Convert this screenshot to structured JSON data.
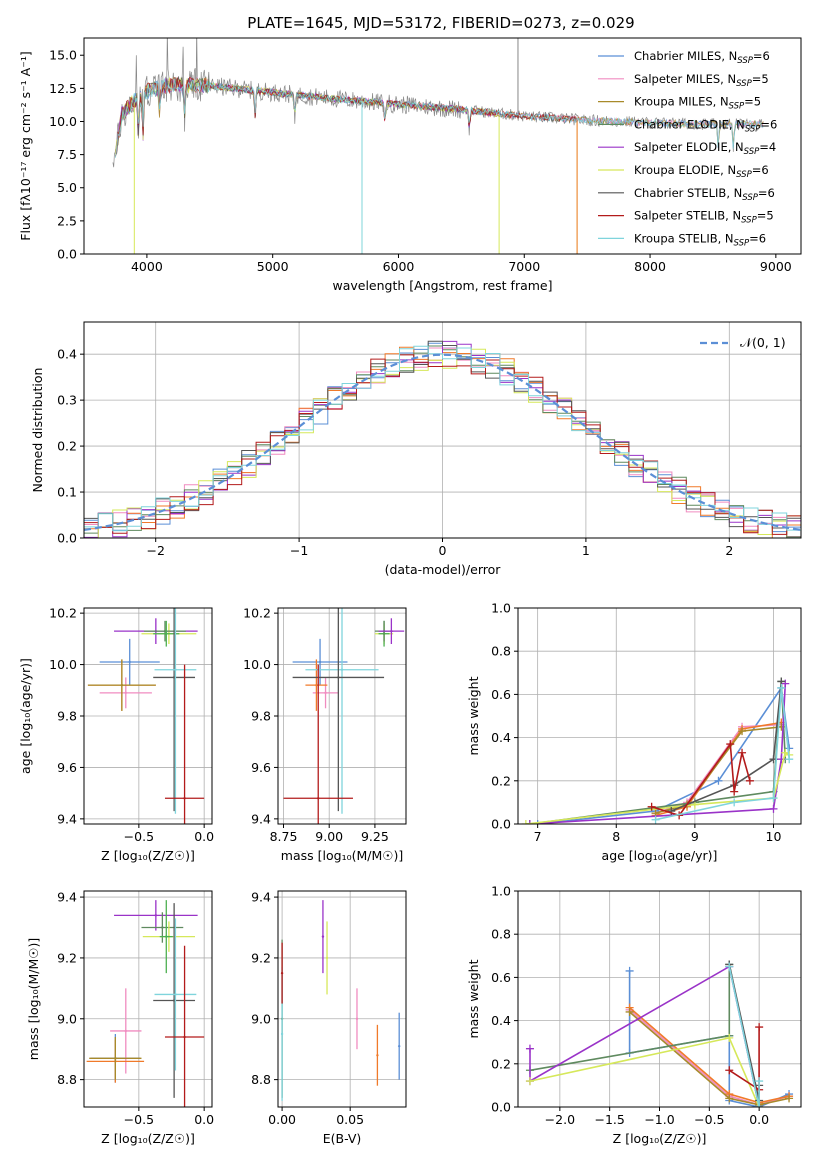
{
  "figure_title": "PLATE=1645, MJD=53172, FIBERID=0273, z=0.029",
  "colors": {
    "Chabrier MILES": "#5b8fd6",
    "Salpeter MILES": "#f08cc0",
    "Kroupa MILES": "#a88a2a",
    "Chabrier ELODIE": "#5f8a5f",
    "Salpeter ELODIE": "#9a33c8",
    "Kroupa ELODIE": "#d6e85a",
    "Chabrier STELIB": "#555555",
    "Salpeter STELIB": "#b31b1b",
    "Kroupa STELIB": "#7fd4dc",
    "orange": "#f07a2a",
    "green": "#4caf50",
    "grey": "#888888"
  },
  "chart_data": [
    {
      "id": "spectrum",
      "type": "line",
      "title": "",
      "xlabel": "wavelength [Angstrom, rest frame]",
      "ylabel": "Flux [fλ10⁻¹⁷ erg cm⁻² s⁻¹ A⁻¹]",
      "xlim": [
        3500,
        9200
      ],
      "ylim": [
        0,
        16.3
      ],
      "xticks": [
        4000,
        5000,
        6000,
        7000,
        8000,
        9000
      ],
      "yticks": [
        0.0,
        2.5,
        5.0,
        7.5,
        10.0,
        12.5,
        15.0
      ],
      "ytick_labels": [
        "0.0",
        "2.5",
        "5.0",
        "7.5",
        "10.0",
        "12.5",
        "15.0"
      ],
      "legend_position": "top-right",
      "legend": [
        {
          "label": "Chabrier MILES, N",
          "sub": "SSP",
          "tail": "=6",
          "color_key": "Chabrier MILES"
        },
        {
          "label": "Salpeter MILES, N",
          "sub": "SSP",
          "tail": "=5",
          "color_key": "Salpeter MILES"
        },
        {
          "label": "Kroupa MILES, N",
          "sub": "SSP",
          "tail": "=5",
          "color_key": "Kroupa MILES"
        },
        {
          "label": "Chabrier ELODIE, N",
          "sub": "SSP",
          "tail": "=6",
          "color_key": "Chabrier ELODIE"
        },
        {
          "label": "Salpeter ELODIE, N",
          "sub": "SSP",
          "tail": "=4",
          "color_key": "Salpeter ELODIE"
        },
        {
          "label": "Kroupa ELODIE, N",
          "sub": "SSP",
          "tail": "=6",
          "color_key": "Kroupa ELODIE"
        },
        {
          "label": "Chabrier STELIB, N",
          "sub": "SSP",
          "tail": "=6",
          "color_key": "Chabrier STELIB"
        },
        {
          "label": "Salpeter STELIB, N",
          "sub": "SSP",
          "tail": "=5",
          "color_key": "Salpeter STELIB"
        },
        {
          "label": "Kroupa STELIB, N",
          "sub": "SSP",
          "tail": "=6",
          "color_key": "Kroupa STELIB"
        }
      ],
      "continuum": [
        [
          3750,
          7.5
        ],
        [
          3800,
          10.5
        ],
        [
          3900,
          11.6
        ],
        [
          4000,
          12.3
        ],
        [
          4200,
          12.8
        ],
        [
          4500,
          12.7
        ],
        [
          5000,
          12.2
        ],
        [
          5500,
          11.7
        ],
        [
          6000,
          11.3
        ],
        [
          6500,
          10.9
        ],
        [
          7000,
          10.4
        ],
        [
          7500,
          10.1
        ],
        [
          8000,
          9.9
        ],
        [
          8500,
          9.8
        ],
        [
          8900,
          9.8
        ]
      ],
      "absorption_lines": [
        [
          3933,
          3.0
        ],
        [
          3968,
          3.5
        ],
        [
          4102,
          2.0
        ],
        [
          4300,
          2.5
        ],
        [
          4861,
          2.2
        ],
        [
          5175,
          1.8
        ],
        [
          5893,
          1.5
        ],
        [
          6563,
          1.5
        ],
        [
          8542,
          2.0
        ],
        [
          8662,
          2.0
        ]
      ],
      "spikes": [
        [
          3900,
          0.0
        ],
        [
          5710,
          0.0
        ],
        [
          6800,
          0.0
        ],
        [
          7420,
          0.0
        ],
        [
          6950,
          16.3
        ]
      ]
    },
    {
      "id": "residuals",
      "type": "histogram",
      "title": "",
      "xlabel": "(data-model)/error",
      "ylabel": "Normed distribution",
      "xlim": [
        -2.5,
        2.5
      ],
      "ylim": [
        0,
        0.47
      ],
      "xticks": [
        -2,
        -1,
        0,
        1,
        2
      ],
      "xtick_labels": [
        "−2",
        "−1",
        "0",
        "1",
        "2"
      ],
      "yticks": [
        0.0,
        0.1,
        0.2,
        0.3,
        0.4
      ],
      "ytick_labels": [
        "0.0",
        "0.1",
        "0.2",
        "0.3",
        "0.4"
      ],
      "grid": true,
      "bin_width": 0.1,
      "reference_curve": {
        "label": "𝒩(0, 1)",
        "mean": 0,
        "sigma": 1,
        "color_key": "Chabrier MILES"
      },
      "legend_position": "top-right"
    },
    {
      "id": "age_vs_Z",
      "type": "errorbar",
      "xlabel": "Z [log₁₀(Z/Z☉)]",
      "ylabel": "age  [log₁₀(age/yr)]",
      "xlim": [
        -0.92,
        0.06
      ],
      "ylim": [
        9.38,
        10.22
      ],
      "xticks": [
        -0.5,
        0.0
      ],
      "xtick_labels": [
        "−0.5",
        "0.0"
      ],
      "yticks": [
        9.4,
        9.6,
        9.8,
        10.0,
        10.2
      ],
      "ytick_labels": [
        "9.4",
        "9.6",
        "9.8",
        "10.0",
        "10.2"
      ],
      "grid": true,
      "points": [
        {
          "color_key": "Chabrier MILES",
          "x": -0.57,
          "y": 10.01,
          "xerr": 0.23,
          "yerr": 0.09
        },
        {
          "color_key": "Salpeter MILES",
          "x": -0.6,
          "y": 9.89,
          "xerr": 0.2,
          "yerr": 0.06
        },
        {
          "color_key": "orange",
          "x": -0.63,
          "y": 9.92,
          "xerr": 0.26,
          "yerr": 0.1
        },
        {
          "color_key": "Kroupa MILES",
          "x": -0.63,
          "y": 9.92,
          "xerr": 0.26,
          "yerr": 0.1
        },
        {
          "color_key": "Salpeter ELODIE",
          "x": -0.37,
          "y": 10.13,
          "xerr": 0.32,
          "yerr": 0.05
        },
        {
          "color_key": "Kroupa ELODIE",
          "x": -0.27,
          "y": 10.12,
          "xerr": 0.21,
          "yerr": 0.04
        },
        {
          "color_key": "Chabrier ELODIE",
          "x": -0.3,
          "y": 10.13,
          "xerr": 0.16,
          "yerr": 0.04
        },
        {
          "color_key": "green",
          "x": -0.29,
          "y": 10.12,
          "xerr": 0.1,
          "yerr": 0.05
        },
        {
          "color_key": "Chabrier STELIB",
          "x": -0.23,
          "y": 9.95,
          "xerr": 0.16,
          "yerr": 0.52
        },
        {
          "color_key": "Kroupa STELIB",
          "x": -0.22,
          "y": 9.98,
          "xerr": 0.16,
          "yerr": 0.56
        },
        {
          "color_key": "Salpeter STELIB",
          "x": -0.15,
          "y": 9.48,
          "xerr": 0.15,
          "yerr": 0.52
        }
      ]
    },
    {
      "id": "age_vs_mass",
      "type": "errorbar",
      "xlabel": "mass [log₁₀(M/M☉)]",
      "ylabel": "",
      "xlim": [
        8.72,
        9.42
      ],
      "ylim": [
        9.38,
        10.22
      ],
      "xticks": [
        8.75,
        9.0,
        9.25
      ],
      "xtick_labels": [
        "8.75",
        "9.00",
        "9.25"
      ],
      "yticks": [
        9.4,
        9.6,
        9.8,
        10.0,
        10.2
      ],
      "ytick_labels": [
        "9.4",
        "9.6",
        "9.8",
        "10.0",
        "10.2"
      ],
      "grid": true,
      "points": [
        {
          "color_key": "Chabrier MILES",
          "x": 8.95,
          "y": 10.01,
          "xerr": 0.15,
          "yerr": 0.09
        },
        {
          "color_key": "Salpeter MILES",
          "x": 8.98,
          "y": 9.89,
          "xerr": 0.07,
          "yerr": 0.06
        },
        {
          "color_key": "orange",
          "x": 8.93,
          "y": 9.92,
          "xerr": 0.06,
          "yerr": 0.1
        },
        {
          "color_key": "Kroupa STELIB",
          "x": 9.07,
          "y": 9.98,
          "xerr": 0.2,
          "yerr": 0.56
        },
        {
          "color_key": "Chabrier STELIB",
          "x": 9.05,
          "y": 9.95,
          "xerr": 0.25,
          "yerr": 0.52
        },
        {
          "color_key": "Salpeter STELIB",
          "x": 8.94,
          "y": 9.48,
          "xerr": 0.19,
          "yerr": 0.52
        },
        {
          "color_key": "Kroupa ELODIE",
          "x": 9.3,
          "y": 10.12,
          "xerr": 0.05,
          "yerr": 0.04
        },
        {
          "color_key": "green",
          "x": 9.3,
          "y": 10.12,
          "xerr": 0.03,
          "yerr": 0.05
        },
        {
          "color_key": "Chabrier ELODIE",
          "x": 9.3,
          "y": 10.13,
          "xerr": 0.05,
          "yerr": 0.04
        },
        {
          "color_key": "Salpeter ELODIE",
          "x": 9.34,
          "y": 10.13,
          "xerr": 0.07,
          "yerr": 0.05
        }
      ]
    },
    {
      "id": "weight_vs_age",
      "type": "line",
      "xlabel": "age  [log₁₀(age/yr)]",
      "ylabel": "mass weight",
      "xlim": [
        6.75,
        10.35
      ],
      "ylim": [
        0,
        1.0
      ],
      "xticks": [
        7,
        8,
        9,
        10
      ],
      "yticks": [
        0.0,
        0.2,
        0.4,
        0.6,
        0.8,
        1.0
      ],
      "ytick_labels": [
        "0.0",
        "0.2",
        "0.4",
        "0.6",
        "0.8",
        "1.0"
      ],
      "grid": true,
      "series": [
        {
          "color_key": "Chabrier MILES",
          "x": [
            7.0,
            8.5,
            9.3,
            10.1,
            10.2
          ],
          "y": [
            0.0,
            0.06,
            0.2,
            0.63,
            0.35
          ]
        },
        {
          "color_key": "Salpeter MILES",
          "x": [
            8.5,
            8.9,
            9.6,
            10.1
          ],
          "y": [
            0.05,
            0.1,
            0.45,
            0.46
          ]
        },
        {
          "color_key": "orange",
          "x": [
            8.5,
            8.9,
            9.6,
            10.1
          ],
          "y": [
            0.04,
            0.08,
            0.44,
            0.47
          ]
        },
        {
          "color_key": "Kroupa MILES",
          "x": [
            8.5,
            8.9,
            9.6,
            10.1
          ],
          "y": [
            0.05,
            0.09,
            0.43,
            0.45
          ]
        },
        {
          "color_key": "Chabrier ELODIE",
          "x": [
            6.9,
            9.0,
            10.0,
            10.1,
            10.15
          ],
          "y": [
            0.0,
            0.1,
            0.15,
            0.66,
            0.3
          ]
        },
        {
          "color_key": "Salpeter ELODIE",
          "x": [
            6.9,
            10.0,
            10.1,
            10.15
          ],
          "y": [
            0.0,
            0.07,
            0.3,
            0.65
          ]
        },
        {
          "color_key": "Kroupa ELODIE",
          "x": [
            6.85,
            9.0,
            10.0,
            10.15,
            10.2
          ],
          "y": [
            0.0,
            0.09,
            0.12,
            0.33,
            0.32
          ]
        },
        {
          "color_key": "Chabrier STELIB",
          "x": [
            8.7,
            9.5,
            10.0,
            10.1
          ],
          "y": [
            0.06,
            0.18,
            0.3,
            0.66
          ]
        },
        {
          "color_key": "Salpeter STELIB",
          "x": [
            8.45,
            8.8,
            9.45,
            9.5,
            9.6,
            9.7
          ],
          "y": [
            0.08,
            0.04,
            0.37,
            0.15,
            0.33,
            0.2
          ]
        },
        {
          "color_key": "Kroupa STELIB",
          "x": [
            8.5,
            9.5,
            10.0,
            10.1,
            10.2
          ],
          "y": [
            0.02,
            0.1,
            0.12,
            0.63,
            0.3
          ]
        }
      ]
    },
    {
      "id": "mass_vs_Z",
      "type": "errorbar",
      "xlabel": "Z [log₁₀(Z/Z☉)]",
      "ylabel": "mass [log₁₀(M/M☉)]",
      "xlim": [
        -0.92,
        0.06
      ],
      "ylim": [
        8.71,
        9.42
      ],
      "xticks": [
        -0.5,
        0.0
      ],
      "xtick_labels": [
        "−0.5",
        "0.0"
      ],
      "yticks": [
        8.8,
        9.0,
        9.2,
        9.4
      ],
      "ytick_labels": [
        "8.8",
        "9.0",
        "9.2",
        "9.4"
      ],
      "grid": true,
      "points": [
        {
          "color_key": "Chabrier MILES",
          "x": -0.68,
          "y": 8.87,
          "xerr": 0.19,
          "yerr": 0.08
        },
        {
          "color_key": "Salpeter MILES",
          "x": -0.6,
          "y": 8.96,
          "xerr": 0.12,
          "yerr": 0.14
        },
        {
          "color_key": "orange",
          "x": -0.68,
          "y": 8.86,
          "xerr": 0.22,
          "yerr": 0.07
        },
        {
          "color_key": "Kroupa MILES",
          "x": -0.68,
          "y": 8.87,
          "xerr": 0.2,
          "yerr": 0.07
        },
        {
          "color_key": "Salpeter ELODIE",
          "x": -0.37,
          "y": 9.34,
          "xerr": 0.32,
          "yerr": 0.05
        },
        {
          "color_key": "Chabrier ELODIE",
          "x": -0.32,
          "y": 9.3,
          "xerr": 0.16,
          "yerr": 0.05
        },
        {
          "color_key": "Kroupa ELODIE",
          "x": -0.27,
          "y": 9.27,
          "xerr": 0.2,
          "yerr": 0.05
        },
        {
          "color_key": "green",
          "x": -0.29,
          "y": 9.27,
          "xerr": 0.05,
          "yerr": 0.12
        },
        {
          "color_key": "Chabrier STELIB",
          "x": -0.23,
          "y": 9.06,
          "xerr": 0.16,
          "yerr": 0.32
        },
        {
          "color_key": "Kroupa STELIB",
          "x": -0.22,
          "y": 9.08,
          "xerr": 0.16,
          "yerr": 0.25
        },
        {
          "color_key": "Salpeter STELIB",
          "x": -0.15,
          "y": 8.94,
          "xerr": 0.15,
          "yerr": 0.3
        }
      ]
    },
    {
      "id": "mass_vs_ebv",
      "type": "errorbar",
      "xlabel": "E(B-V)",
      "ylabel": "",
      "xlim": [
        -0.003,
        0.091
      ],
      "ylim": [
        8.71,
        9.42
      ],
      "xticks": [
        0.0,
        0.05
      ],
      "xtick_labels": [
        "0.00",
        "0.05"
      ],
      "yticks": [
        8.8,
        9.0,
        9.2,
        9.4
      ],
      "ytick_labels": [
        "8.8",
        "9.0",
        "9.2",
        "9.4"
      ],
      "grid": true,
      "points": [
        {
          "color_key": "Chabrier ELODIE",
          "x": 0.0,
          "y": 9.0,
          "xerr": 0,
          "yerr": 0.26
        },
        {
          "color_key": "Kroupa STELIB",
          "x": 0.0,
          "y": 8.95,
          "xerr": 0,
          "yerr": 0.22
        },
        {
          "color_key": "Salpeter STELIB",
          "x": 0.0,
          "y": 9.15,
          "xerr": 0,
          "yerr": 0.1
        },
        {
          "color_key": "Salpeter ELODIE",
          "x": 0.03,
          "y": 9.27,
          "xerr": 0,
          "yerr": 0.12
        },
        {
          "color_key": "Kroupa ELODIE",
          "x": 0.033,
          "y": 9.2,
          "xerr": 0,
          "yerr": 0.12
        },
        {
          "color_key": "Salpeter MILES",
          "x": 0.055,
          "y": 9.0,
          "xerr": 0,
          "yerr": 0.1
        },
        {
          "color_key": "orange",
          "x": 0.07,
          "y": 8.88,
          "xerr": 0,
          "yerr": 0.1
        },
        {
          "color_key": "Chabrier MILES",
          "x": 0.086,
          "y": 8.91,
          "xerr": 0,
          "yerr": 0.11
        }
      ]
    },
    {
      "id": "weight_vs_Z",
      "type": "line",
      "xlabel": "Z [log₁₀(Z/Z☉)]",
      "ylabel": "mass weight",
      "xlim": [
        -2.42,
        0.42
      ],
      "ylim": [
        0,
        1.0
      ],
      "xticks": [
        -2.0,
        -1.5,
        -1.0,
        -0.5,
        0.0
      ],
      "xtick_labels": [
        "−2.0",
        "−1.5",
        "−1.0",
        "−0.5",
        "0.0"
      ],
      "yticks": [
        0.0,
        0.2,
        0.4,
        0.6,
        0.8,
        1.0
      ],
      "ytick_labels": [
        "0.0",
        "0.2",
        "0.4",
        "0.6",
        "0.8",
        "1.0"
      ],
      "grid": true,
      "series": [
        {
          "color_key": "Chabrier MILES",
          "x": [
            -1.3,
            -1.3,
            -0.3,
            -0.3,
            0.0,
            0.3
          ],
          "y": [
            0.63,
            0.25,
            0.33,
            0.03,
            0.0,
            0.06
          ]
        },
        {
          "color_key": "Salpeter MILES",
          "x": [
            -1.3,
            -0.3,
            0.0,
            0.3
          ],
          "y": [
            0.45,
            0.05,
            0.01,
            0.05
          ]
        },
        {
          "color_key": "orange",
          "x": [
            -1.3,
            -0.3,
            0.0,
            0.3
          ],
          "y": [
            0.46,
            0.06,
            0.02,
            0.05
          ]
        },
        {
          "color_key": "Kroupa MILES",
          "x": [
            -1.3,
            -0.3,
            0.0,
            0.3
          ],
          "y": [
            0.44,
            0.04,
            0.01,
            0.04
          ]
        },
        {
          "color_key": "Chabrier ELODIE",
          "x": [
            -2.3,
            -0.3,
            -0.3,
            0.0
          ],
          "y": [
            0.17,
            0.33,
            0.66,
            0.0
          ]
        },
        {
          "color_key": "Salpeter ELODIE",
          "x": [
            -2.3,
            -2.3,
            -0.3,
            0.0
          ],
          "y": [
            0.27,
            0.12,
            0.65,
            0.0
          ]
        },
        {
          "color_key": "Kroupa ELODIE",
          "x": [
            -2.3,
            -0.3,
            0.0
          ],
          "y": [
            0.12,
            0.32,
            0.0
          ]
        },
        {
          "color_key": "Chabrier STELIB",
          "x": [
            -0.3,
            0.0,
            0.0
          ],
          "y": [
            0.66,
            0.03,
            0.1
          ]
        },
        {
          "color_key": "Salpeter STELIB",
          "x": [
            -0.3,
            0.0,
            0.0
          ],
          "y": [
            0.17,
            0.08,
            0.37
          ]
        },
        {
          "color_key": "Kroupa STELIB",
          "x": [
            -0.3,
            0.0,
            0.0
          ],
          "y": [
            0.65,
            0.0,
            0.12
          ]
        }
      ]
    }
  ]
}
